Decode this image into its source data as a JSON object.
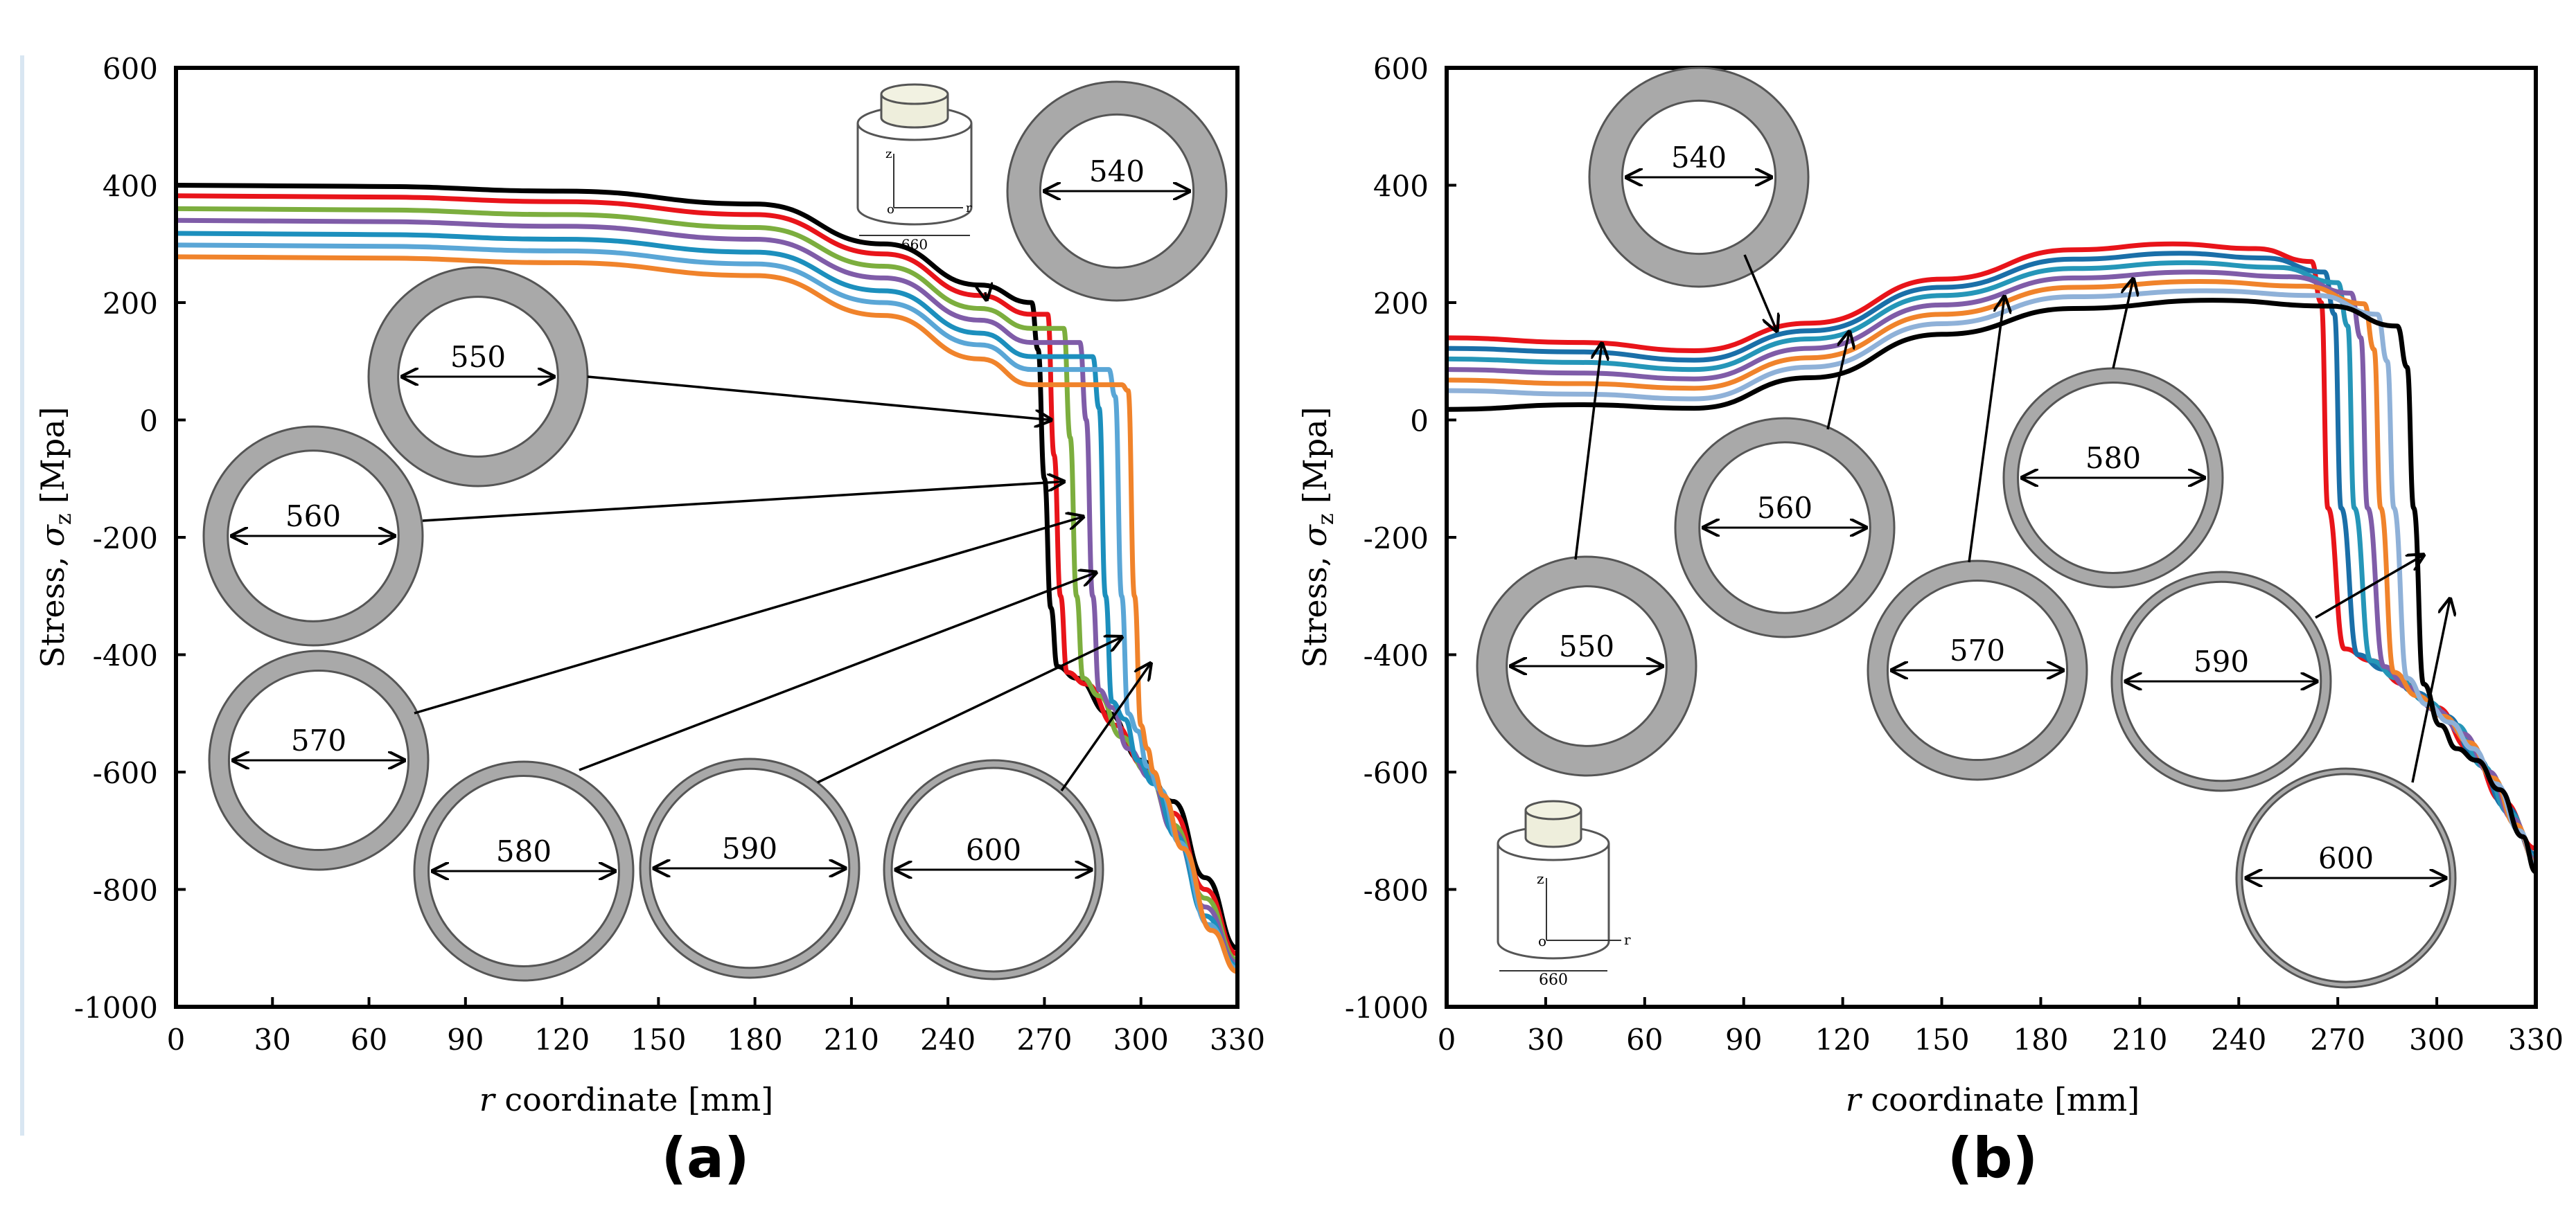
{
  "figure": {
    "panel_labels": [
      "(a)",
      "(b)"
    ]
  },
  "chart_data": [
    {
      "id": "a",
      "type": "line",
      "title": "",
      "xlabel_var": "r",
      "xlabel_text": " coordinate [mm]",
      "ylabel_text": "Stress,",
      "ylabel_sym": "σ",
      "ylabel_sub": "z",
      "ylabel_unit": "[Mpa]",
      "xlim": [
        0,
        330
      ],
      "ylim": [
        -1000,
        600
      ],
      "xticks": [
        "0",
        "30",
        "60",
        "90",
        "120",
        "150",
        "180",
        "210",
        "240",
        "270",
        "300",
        "330"
      ],
      "yticks": [
        "600",
        "400",
        "200",
        "0",
        "-200",
        "-400",
        "-600",
        "-800",
        "-1000"
      ],
      "series": [
        {
          "name": "540",
          "color": "#000000",
          "x": [
            0,
            60,
            120,
            180,
            220,
            250,
            266,
            268,
            270,
            272,
            274,
            280,
            290,
            300,
            310,
            320,
            330
          ],
          "y": [
            400,
            398,
            390,
            368,
            300,
            230,
            200,
            120,
            -100,
            -320,
            -420,
            -440,
            -500,
            -580,
            -650,
            -780,
            -900
          ]
        },
        {
          "name": "550",
          "color": "#e8141a",
          "x": [
            0,
            60,
            120,
            180,
            220,
            250,
            266,
            271,
            273,
            275,
            277,
            283,
            292,
            301,
            310,
            320,
            330
          ],
          "y": [
            382,
            380,
            372,
            350,
            283,
            212,
            180,
            180,
            -60,
            -300,
            -430,
            -450,
            -520,
            -590,
            -670,
            -800,
            -910
          ]
        },
        {
          "name": "560",
          "color": "#7cae3e",
          "x": [
            0,
            60,
            120,
            180,
            220,
            250,
            266,
            276,
            278,
            280,
            282,
            287,
            294,
            302,
            310,
            320,
            330
          ],
          "y": [
            360,
            358,
            350,
            328,
            262,
            190,
            156,
            156,
            -30,
            -300,
            -440,
            -470,
            -540,
            -600,
            -690,
            -815,
            -920
          ]
        },
        {
          "name": "570",
          "color": "#7f5ca8",
          "x": [
            0,
            60,
            120,
            180,
            220,
            250,
            266,
            281,
            283,
            285,
            287,
            291,
            296,
            303,
            310,
            320,
            330
          ],
          "y": [
            340,
            338,
            330,
            308,
            242,
            170,
            132,
            132,
            0,
            -300,
            -460,
            -490,
            -560,
            -610,
            -700,
            -830,
            -925
          ]
        },
        {
          "name": "580",
          "color": "#1c8fbd",
          "x": [
            0,
            60,
            120,
            180,
            220,
            250,
            266,
            285,
            287,
            289,
            291,
            295,
            299,
            304,
            311,
            320,
            330
          ],
          "y": [
            318,
            316,
            308,
            286,
            220,
            148,
            108,
            108,
            20,
            -300,
            -480,
            -510,
            -580,
            -620,
            -710,
            -845,
            -930
          ]
        },
        {
          "name": "590",
          "color": "#5aa6d6",
          "x": [
            0,
            60,
            120,
            180,
            220,
            250,
            266,
            290,
            292,
            294,
            296,
            299,
            302,
            306,
            312,
            321,
            330
          ],
          "y": [
            298,
            296,
            288,
            266,
            200,
            128,
            86,
            86,
            40,
            -300,
            -500,
            -530,
            -590,
            -630,
            -720,
            -860,
            -935
          ]
        },
        {
          "name": "600",
          "color": "#f0832b",
          "x": [
            0,
            60,
            120,
            180,
            220,
            250,
            266,
            294,
            296,
            298,
            300,
            302,
            304,
            307,
            313,
            322,
            330
          ],
          "y": [
            278,
            276,
            268,
            246,
            178,
            104,
            60,
            60,
            50,
            -300,
            -520,
            -560,
            -600,
            -640,
            -730,
            -870,
            -940
          ]
        }
      ],
      "annotations": [
        {
          "label": "540",
          "target": [
            252,
            205
          ]
        },
        {
          "label": "550",
          "target": [
            272,
            0
          ]
        },
        {
          "label": "560",
          "target": [
            276,
            -105
          ]
        },
        {
          "label": "570",
          "target": [
            282,
            -165
          ]
        },
        {
          "label": "580",
          "target": [
            286,
            -260
          ]
        },
        {
          "label": "590",
          "target": [
            294,
            -370
          ]
        },
        {
          "label": "600",
          "target": [
            303,
            -415
          ]
        }
      ],
      "inset_label": "660",
      "inset_axis_z": "z",
      "inset_axis_r": "r",
      "inset_axis_o": "o"
    },
    {
      "id": "b",
      "type": "line",
      "title": "",
      "xlabel_var": "r",
      "xlabel_text": " coordinate [mm]",
      "ylabel_text": "Stress,",
      "ylabel_sym": "σ",
      "ylabel_sub": "z",
      "ylabel_unit": "[Mpa]",
      "xlim": [
        0,
        330
      ],
      "ylim": [
        -1000,
        600
      ],
      "xticks": [
        "0",
        "30",
        "60",
        "90",
        "120",
        "150",
        "180",
        "210",
        "240",
        "270",
        "300",
        "330"
      ],
      "yticks": [
        "600",
        "400",
        "200",
        "0",
        "-200",
        "-400",
        "-600",
        "-800",
        "-1000"
      ],
      "series": [
        {
          "name": "540",
          "color": "#e8141a",
          "x": [
            0,
            40,
            75,
            110,
            150,
            190,
            220,
            245,
            262,
            265,
            267,
            272,
            280,
            290,
            300,
            310,
            320,
            330
          ],
          "y": [
            140,
            132,
            118,
            165,
            240,
            290,
            300,
            292,
            270,
            200,
            -150,
            -390,
            -410,
            -450,
            -490,
            -560,
            -650,
            -730
          ]
        },
        {
          "name": "550",
          "color": "#1a6fa8",
          "x": [
            0,
            40,
            75,
            110,
            150,
            190,
            222,
            248,
            266,
            269,
            271,
            276,
            284,
            294,
            303,
            312,
            321,
            330
          ],
          "y": [
            122,
            116,
            102,
            152,
            226,
            274,
            284,
            276,
            252,
            180,
            -150,
            -400,
            -425,
            -465,
            -505,
            -575,
            -660,
            -740
          ]
        },
        {
          "name": "560",
          "color": "#2596b8",
          "x": [
            0,
            40,
            75,
            110,
            150,
            190,
            224,
            252,
            270,
            273,
            275,
            280,
            288,
            297,
            306,
            314,
            322,
            330
          ],
          "y": [
            104,
            98,
            86,
            138,
            212,
            258,
            268,
            260,
            234,
            160,
            -150,
            -410,
            -440,
            -480,
            -520,
            -590,
            -670,
            -745
          ]
        },
        {
          "name": "570",
          "color": "#7f5ca8",
          "x": [
            0,
            40,
            75,
            110,
            150,
            190,
            226,
            256,
            274,
            277,
            279,
            284,
            291,
            300,
            308,
            316,
            323,
            330
          ],
          "y": [
            86,
            80,
            70,
            122,
            196,
            242,
            252,
            244,
            216,
            140,
            -150,
            -420,
            -455,
            -495,
            -535,
            -600,
            -680,
            -750
          ]
        },
        {
          "name": "580",
          "color": "#f0832b",
          "x": [
            0,
            40,
            75,
            110,
            150,
            190,
            228,
            260,
            278,
            281,
            283,
            287,
            294,
            302,
            310,
            317,
            324,
            330
          ],
          "y": [
            68,
            62,
            54,
            106,
            180,
            226,
            236,
            228,
            198,
            120,
            -150,
            -430,
            -470,
            -505,
            -550,
            -610,
            -690,
            -755
          ]
        },
        {
          "name": "590",
          "color": "#8fb1d8",
          "x": [
            0,
            40,
            75,
            110,
            150,
            190,
            230,
            264,
            282,
            285,
            287,
            291,
            297,
            304,
            311,
            318,
            325,
            330
          ],
          "y": [
            50,
            44,
            36,
            90,
            164,
            210,
            220,
            212,
            180,
            100,
            -150,
            -440,
            -485,
            -515,
            -560,
            -620,
            -700,
            -760
          ]
        },
        {
          "name": "600",
          "color": "#000000",
          "x": [
            0,
            40,
            75,
            110,
            150,
            190,
            232,
            268,
            288,
            291,
            293,
            296,
            301,
            306,
            312,
            319,
            326,
            330
          ],
          "y": [
            18,
            26,
            20,
            72,
            146,
            190,
            204,
            194,
            160,
            90,
            -150,
            -450,
            -520,
            -560,
            -580,
            -630,
            -710,
            -770
          ]
        }
      ],
      "annotations": [
        {
          "label": "540",
          "target": [
            100,
            152
          ]
        },
        {
          "label": "550",
          "target": [
            47,
            130
          ]
        },
        {
          "label": "560",
          "target": [
            122,
            150
          ]
        },
        {
          "label": "570",
          "target": [
            169,
            210
          ]
        },
        {
          "label": "580",
          "target": [
            208,
            240
          ]
        },
        {
          "label": "590",
          "target": [
            296,
            -230
          ]
        },
        {
          "label": "600",
          "target": [
            304,
            -305
          ]
        }
      ],
      "inset_label": "660",
      "inset_axis_z": "z",
      "inset_axis_r": "r",
      "inset_axis_o": "o"
    }
  ]
}
